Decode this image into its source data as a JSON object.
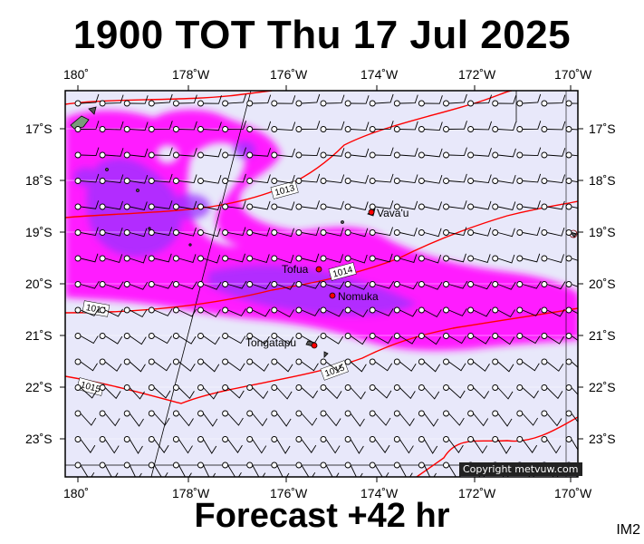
{
  "header": {
    "title": "1900 TOT Thu 17 Jul 2025",
    "forecast": "Forecast +42 hr",
    "image_id": "IM2",
    "copyright": "Copyright metvuw.com"
  },
  "colors": {
    "background": "#e8e8fa",
    "rain_light": "#ff1aff",
    "rain_heavy": "#9933ff",
    "isobar": "#ff0000",
    "land": "#000000"
  },
  "map": {
    "top_lon_labels": [
      "180˚",
      "178˚W",
      "176˚W",
      "174˚W",
      "172˚W",
      "170˚W"
    ],
    "bottom_lon_labels": [
      "180˚",
      "178˚W",
      "176˚W",
      "174˚W",
      "172˚W",
      "170˚W"
    ],
    "lat_labels": [
      "17˚S",
      "18˚S",
      "19˚S",
      "20˚S",
      "21˚S",
      "22˚S",
      "23˚S"
    ],
    "places": [
      {
        "name": "Vava'u"
      },
      {
        "name": "Tofua"
      },
      {
        "name": "Nomuka"
      },
      {
        "name": "Tongatapu"
      }
    ],
    "isobars": [
      {
        "label": "1013"
      },
      {
        "label": "1014"
      },
      {
        "label": "1014"
      },
      {
        "label": "1015"
      },
      {
        "label": "1015"
      }
    ]
  }
}
